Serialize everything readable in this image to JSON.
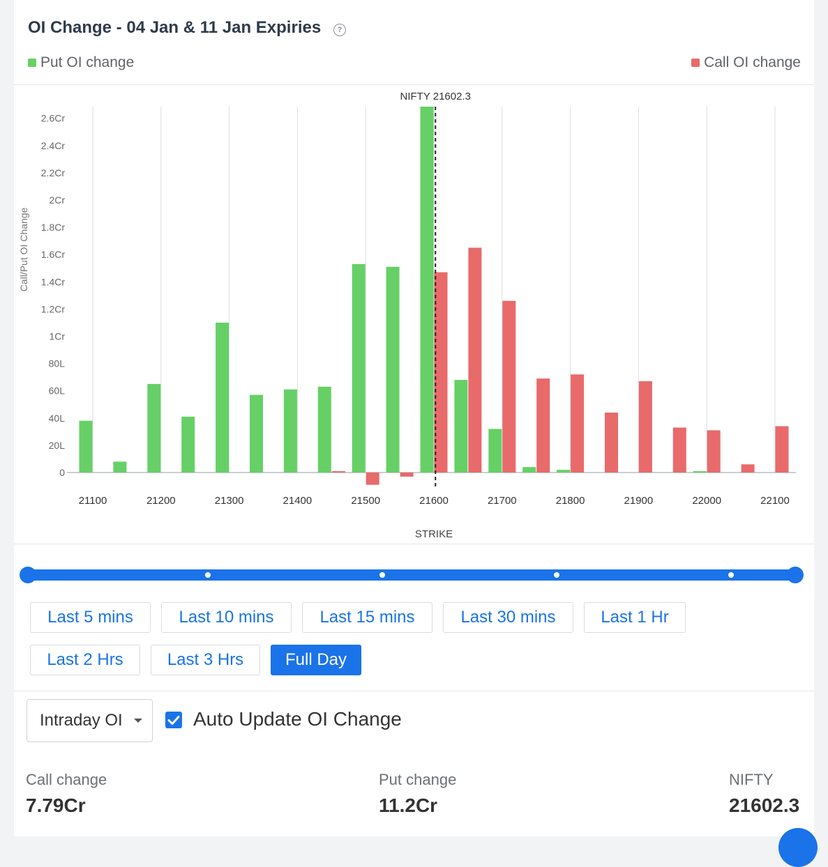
{
  "title": "OI Change - 04 Jan & 11 Jan Expiries",
  "legend": {
    "put_label": "Put OI change",
    "call_label": "Call OI change"
  },
  "colors": {
    "put": "#66d066",
    "call": "#e96a6a",
    "accent": "#1a73e8"
  },
  "chart_data": {
    "type": "bar",
    "xlabel": "STRIKE",
    "ylabel": "Call/Put OI Change",
    "x_ticks": [
      21100,
      21200,
      21300,
      21400,
      21500,
      21600,
      21700,
      21800,
      21900,
      22000,
      22100
    ],
    "ylim": [
      -0.1,
      2.7
    ],
    "y_unit": "Cr",
    "y_ticks": [
      {
        "value": 0,
        "label": "0"
      },
      {
        "value": 0.2,
        "label": "20L"
      },
      {
        "value": 0.4,
        "label": "40L"
      },
      {
        "value": 0.6,
        "label": "60L"
      },
      {
        "value": 0.8,
        "label": "80L"
      },
      {
        "value": 1.0,
        "label": "1Cr"
      },
      {
        "value": 1.2,
        "label": "1.2Cr"
      },
      {
        "value": 1.4,
        "label": "1.4Cr"
      },
      {
        "value": 1.6,
        "label": "1.6Cr"
      },
      {
        "value": 1.8,
        "label": "1.8Cr"
      },
      {
        "value": 2.0,
        "label": "2Cr"
      },
      {
        "value": 2.2,
        "label": "2.2Cr"
      },
      {
        "value": 2.4,
        "label": "2.4Cr"
      },
      {
        "value": 2.6,
        "label": "2.6Cr"
      }
    ],
    "strikes": [
      21100,
      21150,
      21200,
      21250,
      21300,
      21350,
      21400,
      21450,
      21500,
      21550,
      21600,
      21650,
      21700,
      21750,
      21800,
      21850,
      21900,
      21950,
      22000,
      22050,
      22100
    ],
    "series": [
      {
        "name": "Put OI change",
        "values": [
          0.38,
          0.08,
          0.65,
          0.41,
          1.1,
          0.57,
          0.61,
          0.63,
          1.53,
          1.51,
          2.72,
          0.68,
          0.32,
          0.04,
          0.02,
          0,
          0,
          0,
          0.01,
          0,
          0
        ]
      },
      {
        "name": "Call OI change",
        "values": [
          0,
          0,
          0,
          0,
          0,
          0,
          0,
          0.01,
          -0.09,
          -0.03,
          1.47,
          1.65,
          1.26,
          0.69,
          0.72,
          0.44,
          0.67,
          0.33,
          0.31,
          0.06,
          0.34
        ]
      }
    ],
    "spot": {
      "label": "NIFTY 21602.3",
      "value": 21602.3
    },
    "grid": "vertical"
  },
  "time_buttons": [
    {
      "label": "Last 5 mins",
      "active": false
    },
    {
      "label": "Last 10 mins",
      "active": false
    },
    {
      "label": "Last 15 mins",
      "active": false
    },
    {
      "label": "Last 30 mins",
      "active": false
    },
    {
      "label": "Last 1 Hr",
      "active": false
    },
    {
      "label": "Last 2 Hrs",
      "active": false
    },
    {
      "label": "Last 3 Hrs",
      "active": false
    },
    {
      "label": "Full Day",
      "active": true
    }
  ],
  "controls": {
    "oi_select_value": "Intraday OI",
    "auto_update_label": "Auto Update OI Change",
    "auto_update_checked": true
  },
  "stats": {
    "call_label": "Call change",
    "call_value": "7.79Cr",
    "put_label": "Put change",
    "put_value": "11.2Cr",
    "nifty_label": "NIFTY",
    "nifty_value": "21602.3"
  }
}
